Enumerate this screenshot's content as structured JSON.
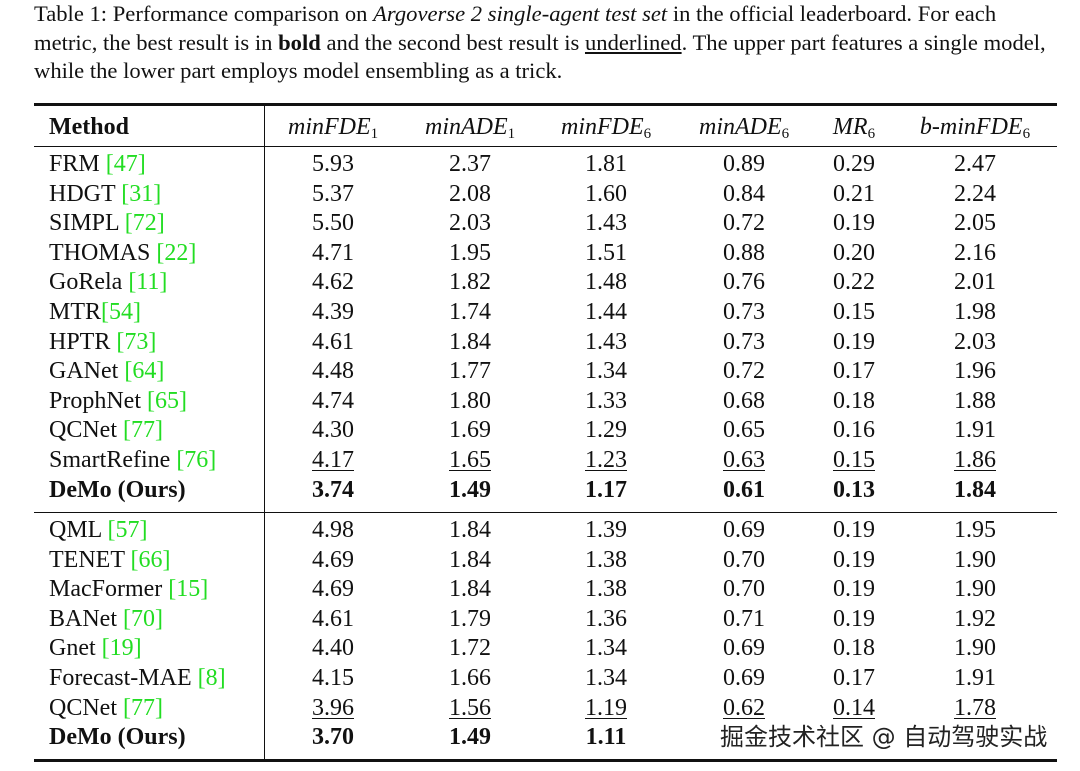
{
  "caption": {
    "label": "Table 1:",
    "p1": " Performance comparison on ",
    "p1_italic": "Argoverse 2 single-agent test set",
    "p2": " in the official leaderboard. For each metric, the best result is in ",
    "bold_word": "bold",
    "p3": " and the second best result is ",
    "underline_word": "underlined",
    "p4": ". The upper part features a single model, while the lower part employs model ensembling as a trick."
  },
  "table": {
    "header": {
      "method": "Method",
      "metrics": [
        {
          "name": "minFDE",
          "sub": "1"
        },
        {
          "name": "minADE",
          "sub": "1"
        },
        {
          "name": "minFDE",
          "sub": "6"
        },
        {
          "name": "minADE",
          "sub": "6"
        },
        {
          "name": "MR",
          "sub": "6"
        },
        {
          "name": "b-minFDE",
          "sub": "6"
        }
      ]
    },
    "single_model_rows": [
      {
        "method": "FRM",
        "ref": "[47]",
        "values": [
          "5.93",
          "2.37",
          "1.81",
          "0.89",
          "0.29",
          "2.47"
        ]
      },
      {
        "method": "HDGT",
        "ref": "[31]",
        "values": [
          "5.37",
          "2.08",
          "1.60",
          "0.84",
          "0.21",
          "2.24"
        ]
      },
      {
        "method": "SIMPL",
        "ref": "[72]",
        "values": [
          "5.50",
          "2.03",
          "1.43",
          "0.72",
          "0.19",
          "2.05"
        ]
      },
      {
        "method": "THOMAS",
        "ref": "[22]",
        "values": [
          "4.71",
          "1.95",
          "1.51",
          "0.88",
          "0.20",
          "2.16"
        ]
      },
      {
        "method": "GoRela",
        "ref": "[11]",
        "values": [
          "4.62",
          "1.82",
          "1.48",
          "0.76",
          "0.22",
          "2.01"
        ]
      },
      {
        "method": "MTR",
        "ref": "[54]",
        "values": [
          "4.39",
          "1.74",
          "1.44",
          "0.73",
          "0.15",
          "1.98"
        ]
      },
      {
        "method": "HPTR",
        "ref": "[73]",
        "values": [
          "4.61",
          "1.84",
          "1.43",
          "0.73",
          "0.19",
          "2.03"
        ]
      },
      {
        "method": "GANet",
        "ref": "[64]",
        "values": [
          "4.48",
          "1.77",
          "1.34",
          "0.72",
          "0.17",
          "1.96"
        ]
      },
      {
        "method": "ProphNet",
        "ref": "[65]",
        "values": [
          "4.74",
          "1.80",
          "1.33",
          "0.68",
          "0.18",
          "1.88"
        ]
      },
      {
        "method": "QCNet",
        "ref": "[77]",
        "values": [
          "4.30",
          "1.69",
          "1.29",
          "0.65",
          "0.16",
          "1.91"
        ]
      },
      {
        "method": "SmartRefine",
        "ref": "[76]",
        "values": [
          "4.17",
          "1.65",
          "1.23",
          "0.63",
          "0.15",
          "1.86"
        ]
      },
      {
        "method": "DeMo (Ours)",
        "ref": "",
        "values": [
          "3.74",
          "1.49",
          "1.17",
          "0.61",
          "0.13",
          "1.84"
        ]
      }
    ],
    "ensemble_rows": [
      {
        "method": "QML",
        "ref": "[57]",
        "values": [
          "4.98",
          "1.84",
          "1.39",
          "0.69",
          "0.19",
          "1.95"
        ]
      },
      {
        "method": "TENET",
        "ref": "[66]",
        "values": [
          "4.69",
          "1.84",
          "1.38",
          "0.70",
          "0.19",
          "1.90"
        ]
      },
      {
        "method": "MacFormer",
        "ref": "[15]",
        "values": [
          "4.69",
          "1.84",
          "1.38",
          "0.70",
          "0.19",
          "1.90"
        ]
      },
      {
        "method": "BANet",
        "ref": "[70]",
        "values": [
          "4.61",
          "1.79",
          "1.36",
          "0.71",
          "0.19",
          "1.92"
        ]
      },
      {
        "method": "Gnet",
        "ref": "[19]",
        "values": [
          "4.40",
          "1.72",
          "1.34",
          "0.69",
          "0.18",
          "1.90"
        ]
      },
      {
        "method": "Forecast-MAE",
        "ref": "[8]",
        "values": [
          "4.15",
          "1.66",
          "1.34",
          "0.69",
          "0.17",
          "1.91"
        ]
      },
      {
        "method": "QCNet",
        "ref": "[77]",
        "values": [
          "3.96",
          "1.56",
          "1.19",
          "0.62",
          "0.14",
          "1.78"
        ]
      },
      {
        "method": "DeMo (Ours)",
        "ref": "",
        "values": [
          "3.70",
          "1.49",
          "1.11",
          "",
          "",
          ""
        ]
      }
    ]
  },
  "watermark": "掘金技术社区 @ 自动驾驶实战"
}
